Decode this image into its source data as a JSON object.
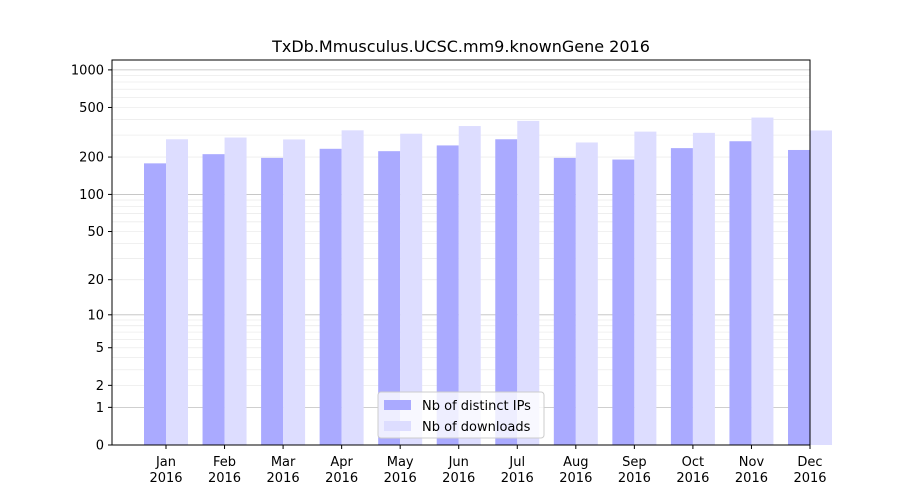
{
  "chart_data": {
    "type": "bar",
    "title": "TxDb.Mmusculus.UCSC.mm9.knownGene 2016",
    "xlabel": "",
    "ylabel": "",
    "yscale": "log1p",
    "ylim": [
      0,
      1200
    ],
    "yticks": [
      0,
      1,
      2,
      5,
      10,
      20,
      50,
      100,
      200,
      500,
      1000
    ],
    "grid": true,
    "legend_position": "bottom-center",
    "categories": [
      [
        "Jan",
        "2016"
      ],
      [
        "Feb",
        "2016"
      ],
      [
        "Mar",
        "2016"
      ],
      [
        "Apr",
        "2016"
      ],
      [
        "May",
        "2016"
      ],
      [
        "Jun",
        "2016"
      ],
      [
        "Jul",
        "2016"
      ],
      [
        "Aug",
        "2016"
      ],
      [
        "Sep",
        "2016"
      ],
      [
        "Oct",
        "2016"
      ],
      [
        "Nov",
        "2016"
      ],
      [
        "Dec",
        "2016"
      ]
    ],
    "series": [
      {
        "name": "Nb of distinct IPs",
        "color": "#aaaaff",
        "values": [
          178,
          211,
          197,
          233,
          223,
          248,
          278,
          197,
          191,
          236,
          268,
          228
        ]
      },
      {
        "name": "Nb of downloads",
        "color": "#ddddff",
        "values": [
          278,
          287,
          277,
          328,
          308,
          355,
          390,
          262,
          320,
          313,
          415,
          327
        ]
      }
    ]
  }
}
